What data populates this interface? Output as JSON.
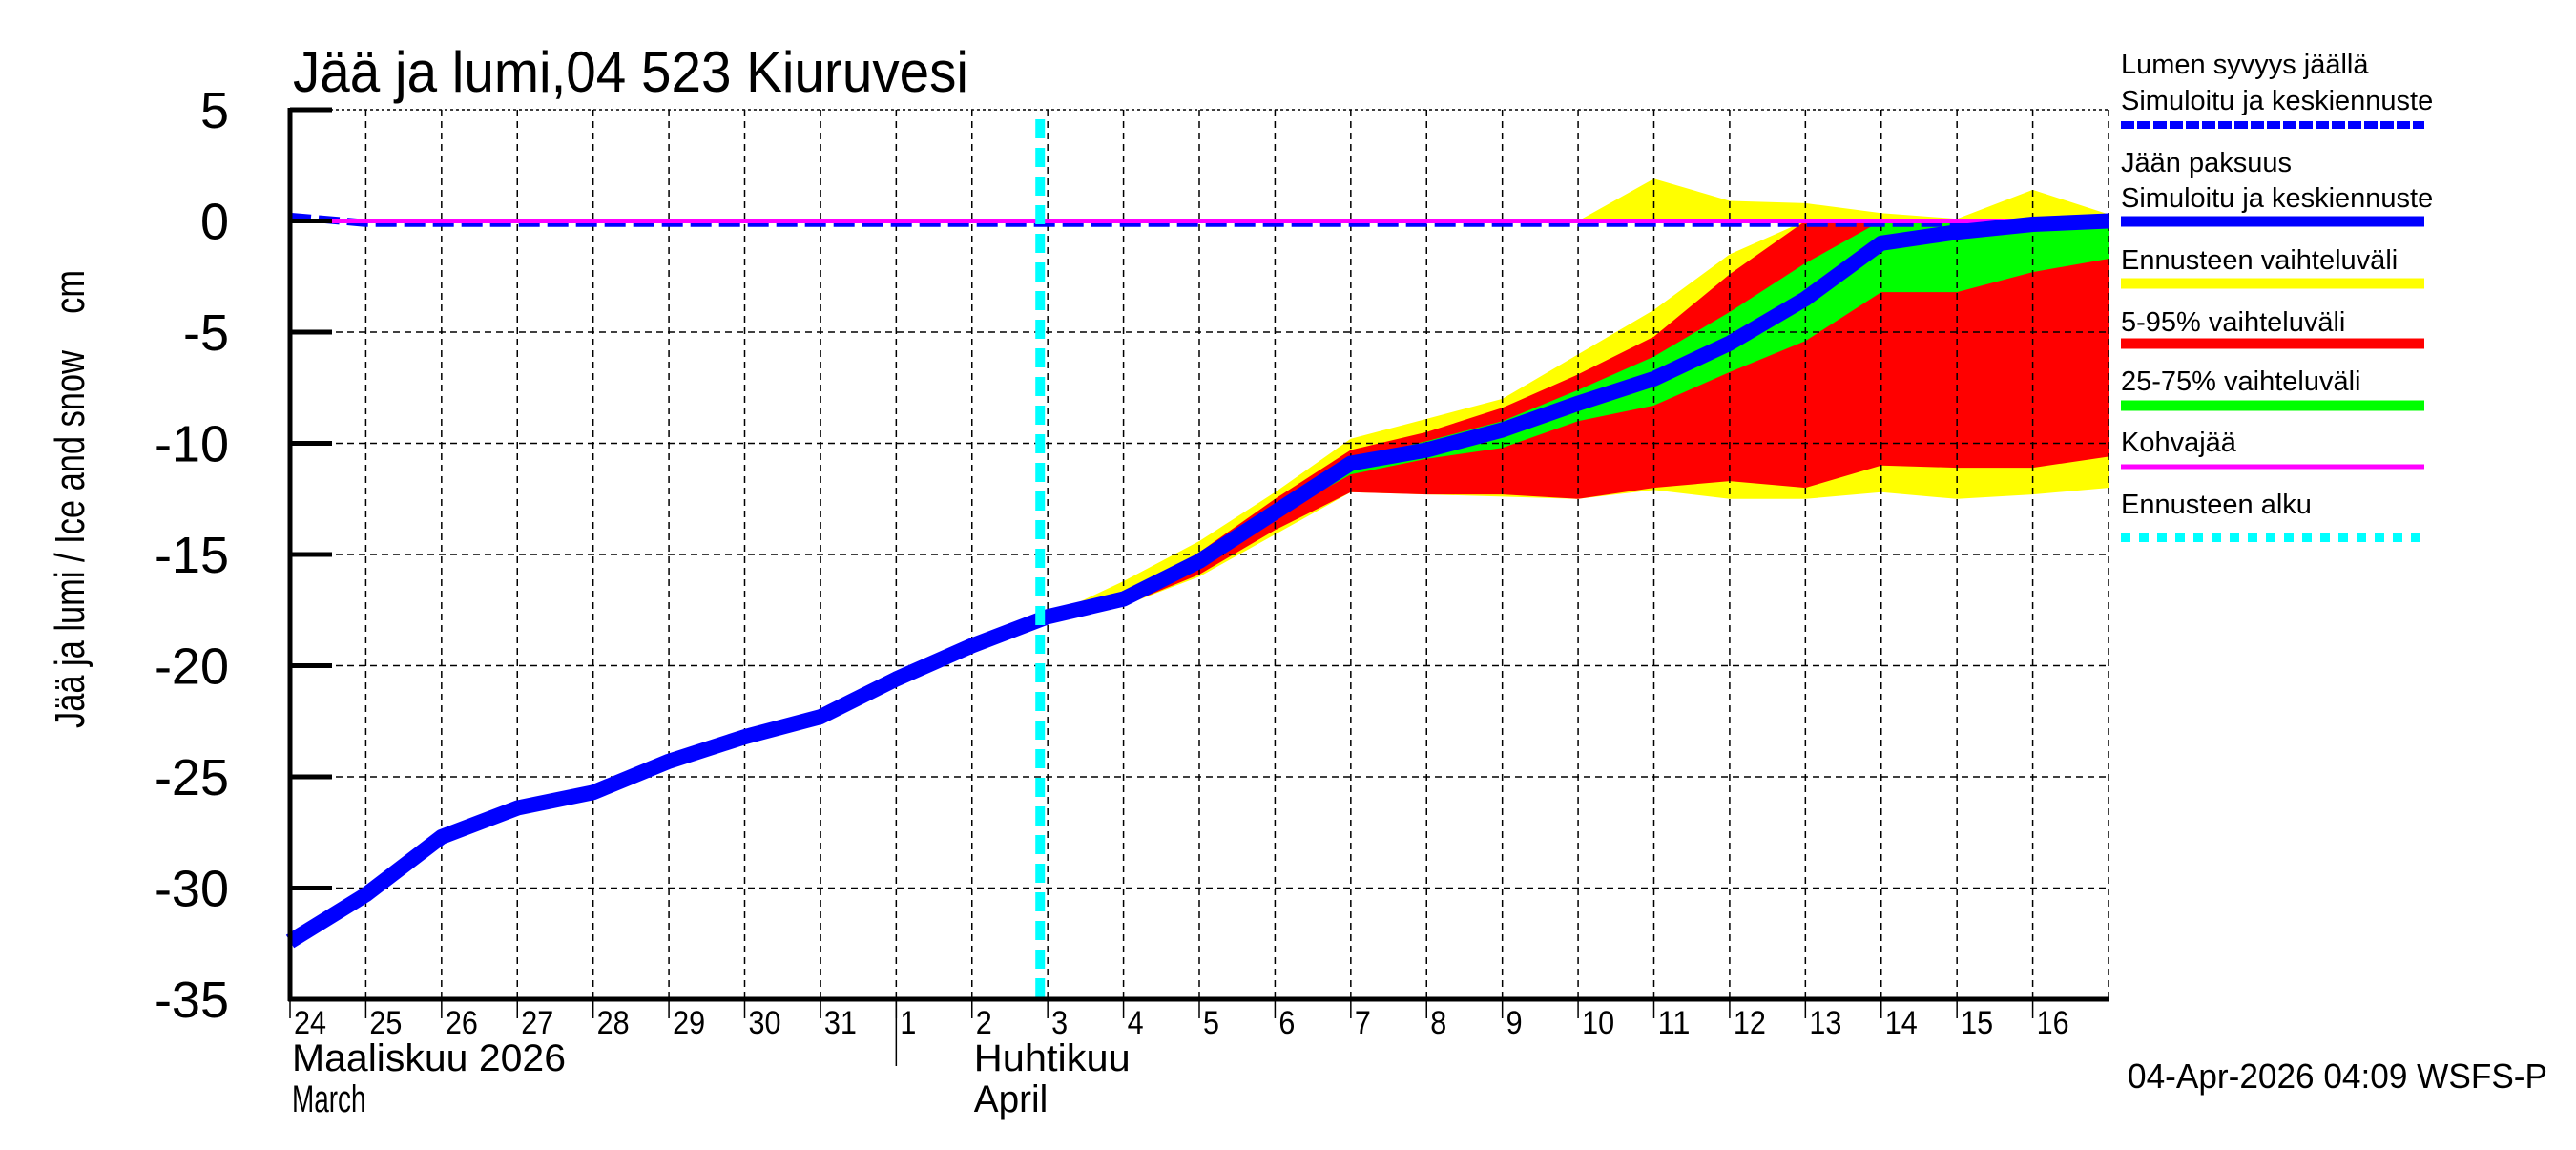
{
  "chart_data": {
    "type": "area",
    "title": "Jää ja lumi,04 523 Kiuruvesi",
    "ylabel": "Jää ja lumi / Ice and snow    cm",
    "xlabel": "",
    "ylim": [
      -35,
      5
    ],
    "yticks": [
      5,
      0,
      -5,
      -10,
      -15,
      -20,
      -25,
      -30,
      -35
    ],
    "grid": true,
    "legend_position": "right",
    "x_start_label": "24 Mar 2026",
    "x_days": [
      "24",
      "25",
      "26",
      "27",
      "28",
      "29",
      "30",
      "31",
      "1",
      "2",
      "3",
      "4",
      "5",
      "6",
      "7",
      "8",
      "9",
      "10",
      "11",
      "12",
      "13",
      "14",
      "15",
      "16"
    ],
    "x_range_days": [
      0,
      24
    ],
    "months": [
      {
        "label_fi": "Maaliskuu 2026",
        "label_en": "March",
        "start_index": 0
      },
      {
        "label_fi": "Huhtikuu",
        "label_en": "April",
        "start_index": 8
      }
    ],
    "forecast_start_index": 9.9,
    "timestamp": "04-Apr-2026 04:09 WSFS-P",
    "ice_thickness": {
      "name": "Jään paksuus — Simuloitu ja keskiennuste",
      "x": [
        0,
        1,
        2,
        3,
        4,
        5,
        6,
        7,
        8,
        9,
        10,
        11,
        12,
        13,
        14,
        15,
        16,
        17,
        18,
        19,
        20,
        21,
        22,
        23,
        24
      ],
      "values": [
        -32.4,
        -30.3,
        -27.7,
        -26.4,
        -25.7,
        -24.3,
        -23.2,
        -22.3,
        -20.6,
        -19.1,
        -17.8,
        -17.0,
        -15.3,
        -13.1,
        -10.9,
        -10.3,
        -9.4,
        -8.2,
        -7.1,
        -5.5,
        -3.5,
        -1.0,
        -0.5,
        -0.15,
        0.0
      ]
    },
    "snow_depth": {
      "name": "Lumen syvyys jäällä — Simuloitu ja keskiennuste",
      "x": [
        0,
        1,
        24
      ],
      "values": [
        0.2,
        -0.1,
        -0.1
      ]
    },
    "slush_ice": {
      "name": "Kohvajää",
      "x": [
        0,
        24
      ],
      "values": [
        0.0,
        0.0
      ]
    },
    "bands": {
      "x": [
        10,
        11,
        12,
        13,
        14,
        15,
        16,
        17,
        18,
        19,
        20,
        21,
        22,
        23,
        24
      ],
      "yellow_upper": [
        -17.8,
        -16.2,
        -14.4,
        -12.2,
        -9.8,
        -8.9,
        -8.0,
        -6.0,
        -4.0,
        -1.5,
        0.0,
        0.0,
        0.0,
        0.0,
        0.0
      ],
      "red_upper": [
        -17.8,
        -16.8,
        -14.9,
        -12.5,
        -10.3,
        -9.5,
        -8.4,
        -6.9,
        -5.2,
        -2.4,
        0.0,
        0.0,
        0.0,
        0.0,
        0.0
      ],
      "green_upper": [
        -17.8,
        -17.0,
        -15.2,
        -12.9,
        -10.7,
        -9.9,
        -9.0,
        -7.6,
        -6.1,
        -4.1,
        -1.9,
        0.0,
        0.0,
        0.0,
        0.0
      ],
      "green_lower": [
        -17.8,
        -17.0,
        -15.4,
        -13.3,
        -11.4,
        -10.7,
        -10.2,
        -9.0,
        -8.3,
        -6.8,
        -5.4,
        -3.2,
        -3.2,
        -2.3,
        -1.7
      ],
      "red_lower": [
        -17.9,
        -17.3,
        -15.9,
        -13.9,
        -12.2,
        -12.3,
        -12.3,
        -12.5,
        -12.0,
        -11.7,
        -12.0,
        -11.0,
        -11.1,
        -11.1,
        -10.6
      ],
      "yellow_lower": [
        -17.9,
        -17.3,
        -16.0,
        -14.1,
        -12.2,
        -12.3,
        -12.4,
        -12.5,
        -12.1,
        -12.5,
        -12.5,
        -12.2,
        -12.5,
        -12.3,
        -12.0
      ],
      "snow_yellow_x": [
        16.6,
        17,
        18,
        19,
        20,
        21,
        22,
        23,
        24
      ],
      "snow_yellow_upper": [
        0.0,
        0.0,
        1.9,
        0.9,
        0.8,
        0.35,
        0.1,
        1.4,
        0.3
      ]
    },
    "legend": [
      {
        "line1": "Lumen syvyys jäällä",
        "line2": "Simuloitu ja keskiennuste",
        "color": "#0000ff",
        "style": "dashed",
        "width": 8
      },
      {
        "line1": "Jään paksuus",
        "line2": "Simuloitu ja keskiennuste",
        "color": "#0000ff",
        "style": "solid",
        "width": 11
      },
      {
        "line1": "Ennusteen vaihteluväli",
        "line2": "",
        "color": "#ffff00",
        "style": "solid",
        "width": 11
      },
      {
        "line1": "5-95% vaihteluväli",
        "line2": "",
        "color": "#ff0000",
        "style": "solid",
        "width": 11
      },
      {
        "line1": "25-75% vaihteluväli",
        "line2": "",
        "color": "#00ff00",
        "style": "solid",
        "width": 11
      },
      {
        "line1": "Kohvajää",
        "line2": "",
        "color": "#ff00ff",
        "style": "solid",
        "width": 5
      },
      {
        "line1": "Ennusteen alku",
        "line2": "",
        "color": "#00ffff",
        "style": "dotted",
        "width": 10
      }
    ],
    "colors": {
      "ice": "#0000ff",
      "snow": "#0000ff",
      "yellow": "#ffff00",
      "red": "#ff0000",
      "green": "#00ff00",
      "magenta": "#ff00ff",
      "cyan": "#00ffff"
    }
  }
}
